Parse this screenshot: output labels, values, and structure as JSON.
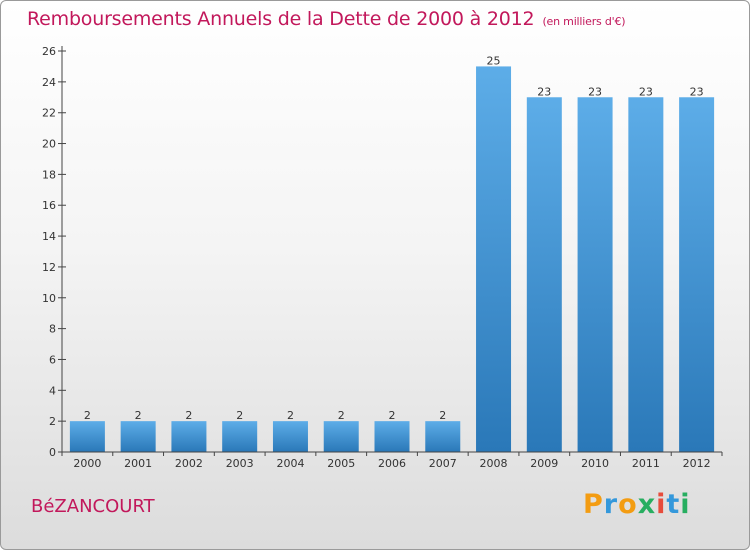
{
  "chart_data": {
    "type": "bar",
    "title": "Remboursements Annuels de la Dette de 2000 à 2012",
    "subtitle": "(en milliers d'€)",
    "xlabel": "",
    "ylabel": "",
    "categories": [
      "2000",
      "2001",
      "2002",
      "2003",
      "2004",
      "2005",
      "2006",
      "2007",
      "2008",
      "2009",
      "2010",
      "2011",
      "2012"
    ],
    "values": [
      2,
      2,
      2,
      2,
      2,
      2,
      2,
      2,
      25,
      23,
      23,
      23,
      23
    ],
    "ylim": [
      0,
      26
    ],
    "yticks": [
      0,
      2,
      4,
      6,
      8,
      10,
      12,
      14,
      16,
      18,
      20,
      22,
      24,
      26
    ],
    "grid": false,
    "legend": "none",
    "bar_color_top": "#5dade8",
    "bar_color_bottom": "#2a78b8"
  },
  "commune": "BéZANCOURT",
  "brand": {
    "letters": [
      "P",
      "r",
      "o",
      "x",
      "i",
      "t",
      "i"
    ],
    "colors": [
      "#f39c12",
      "#3498db",
      "#f39c12",
      "#27ae60",
      "#e74c3c",
      "#3498db",
      "#27ae60"
    ]
  },
  "colors": {
    "title": "#c2185b",
    "axis": "#444444"
  }
}
